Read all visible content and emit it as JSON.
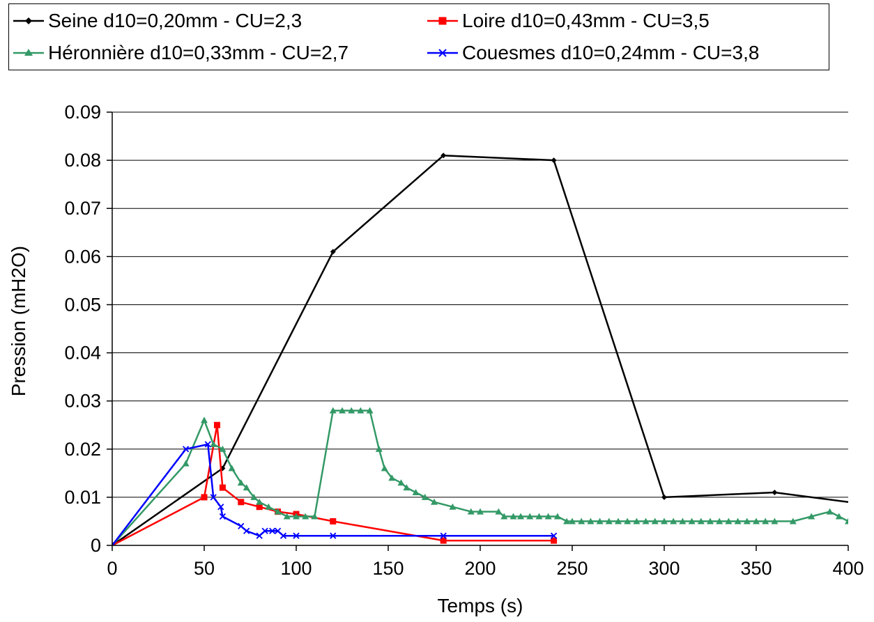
{
  "chart_data": {
    "type": "line",
    "title": "",
    "xlabel": "Temps (s)",
    "ylabel": "Pression (mH2O)",
    "xlim": [
      0,
      400
    ],
    "ylim": [
      0,
      0.09
    ],
    "x_ticks": [
      "0",
      "50",
      "100",
      "150",
      "200",
      "250",
      "300",
      "350",
      "400"
    ],
    "y_ticks": [
      "0",
      "0.01",
      "0.02",
      "0.03",
      "0.04",
      "0.05",
      "0.06",
      "0.07",
      "0.08",
      "0.09"
    ],
    "grid": "horizontal",
    "legend_position": "top",
    "series": [
      {
        "name": "Seine d10=0,20mm - CU=2,3",
        "color": "#000000",
        "marker": "diamond",
        "points": [
          [
            0,
            0
          ],
          [
            60,
            0.016
          ],
          [
            120,
            0.061
          ],
          [
            180,
            0.081
          ],
          [
            240,
            0.08
          ],
          [
            300,
            0.01
          ],
          [
            360,
            0.011
          ],
          [
            420,
            0.008
          ]
        ]
      },
      {
        "name": "Loire d10=0,43mm - CU=3,5",
        "color": "#ff0000",
        "marker": "square",
        "points": [
          [
            0,
            0
          ],
          [
            50,
            0.01
          ],
          [
            57,
            0.025
          ],
          [
            60,
            0.012
          ],
          [
            70,
            0.009
          ],
          [
            80,
            0.008
          ],
          [
            90,
            0.007
          ],
          [
            100,
            0.0065
          ],
          [
            120,
            0.005
          ],
          [
            180,
            0.001
          ],
          [
            240,
            0.001
          ]
        ]
      },
      {
        "name": "Héronnière d10=0,33mm - CU=2,7",
        "color": "#339966",
        "marker": "triangle",
        "points": [
          [
            0,
            0
          ],
          [
            40,
            0.017
          ],
          [
            50,
            0.026
          ],
          [
            55,
            0.021
          ],
          [
            60,
            0.02
          ],
          [
            65,
            0.016
          ],
          [
            70,
            0.013
          ],
          [
            73,
            0.012
          ],
          [
            77,
            0.01
          ],
          [
            80,
            0.009
          ],
          [
            85,
            0.008
          ],
          [
            90,
            0.007
          ],
          [
            95,
            0.006
          ],
          [
            100,
            0.006
          ],
          [
            105,
            0.006
          ],
          [
            110,
            0.006
          ],
          [
            120,
            0.028
          ],
          [
            125,
            0.028
          ],
          [
            130,
            0.028
          ],
          [
            135,
            0.028
          ],
          [
            140,
            0.028
          ],
          [
            145,
            0.02
          ],
          [
            148,
            0.016
          ],
          [
            152,
            0.014
          ],
          [
            157,
            0.013
          ],
          [
            160,
            0.012
          ],
          [
            165,
            0.011
          ],
          [
            170,
            0.01
          ],
          [
            175,
            0.009
          ],
          [
            185,
            0.008
          ],
          [
            195,
            0.007
          ],
          [
            200,
            0.007
          ],
          [
            210,
            0.007
          ],
          [
            213,
            0.006
          ],
          [
            218,
            0.006
          ],
          [
            222,
            0.006
          ],
          [
            227,
            0.006
          ],
          [
            232,
            0.006
          ],
          [
            237,
            0.006
          ],
          [
            242,
            0.006
          ],
          [
            247,
            0.005
          ],
          [
            250,
            0.005
          ],
          [
            255,
            0.005
          ],
          [
            260,
            0.005
          ],
          [
            265,
            0.005
          ],
          [
            270,
            0.005
          ],
          [
            275,
            0.005
          ],
          [
            280,
            0.005
          ],
          [
            285,
            0.005
          ],
          [
            290,
            0.005
          ],
          [
            295,
            0.005
          ],
          [
            300,
            0.005
          ],
          [
            305,
            0.005
          ],
          [
            310,
            0.005
          ],
          [
            315,
            0.005
          ],
          [
            320,
            0.005
          ],
          [
            325,
            0.005
          ],
          [
            330,
            0.005
          ],
          [
            335,
            0.005
          ],
          [
            340,
            0.005
          ],
          [
            345,
            0.005
          ],
          [
            350,
            0.005
          ],
          [
            355,
            0.005
          ],
          [
            360,
            0.005
          ],
          [
            370,
            0.005
          ],
          [
            380,
            0.006
          ],
          [
            390,
            0.007
          ],
          [
            395,
            0.006
          ],
          [
            400,
            0.005
          ]
        ]
      },
      {
        "name": "Couesmes d10=0,24mm - CU=3,8",
        "color": "#0000ff",
        "marker": "x",
        "points": [
          [
            0,
            0
          ],
          [
            40,
            0.02
          ],
          [
            52,
            0.021
          ],
          [
            55,
            0.01
          ],
          [
            59,
            0.008
          ],
          [
            60,
            0.006
          ],
          [
            70,
            0.004
          ],
          [
            73,
            0.003
          ],
          [
            80,
            0.002
          ],
          [
            83,
            0.003
          ],
          [
            87,
            0.003
          ],
          [
            90,
            0.003
          ],
          [
            93,
            0.002
          ],
          [
            100,
            0.002
          ],
          [
            120,
            0.002
          ],
          [
            180,
            0.002
          ],
          [
            240,
            0.002
          ]
        ]
      }
    ]
  }
}
